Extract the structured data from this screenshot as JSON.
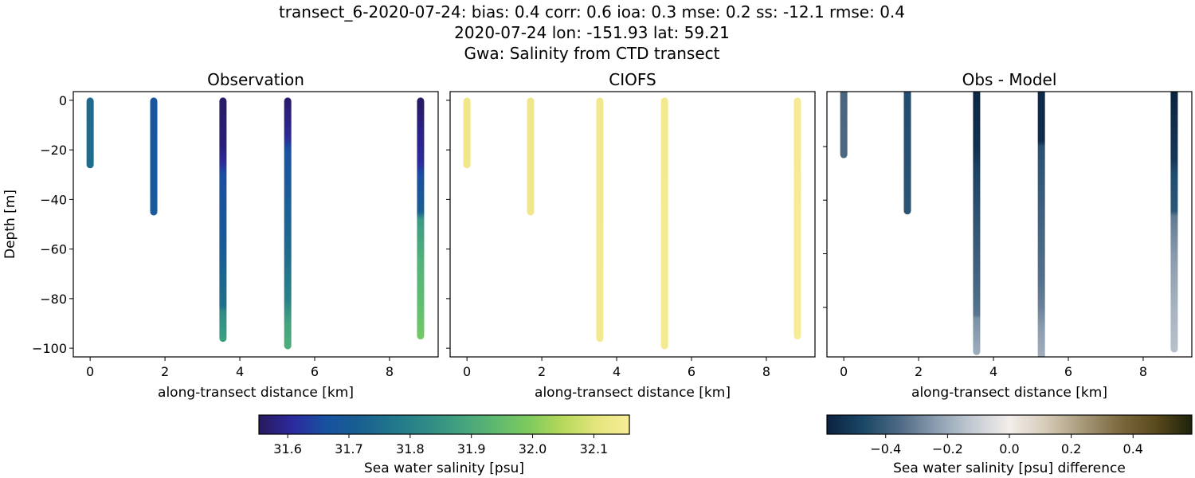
{
  "figure": {
    "title_lines": [
      "transect_6-2020-07-24: bias: 0.4  corr: 0.6  ioa: 0.3  mse: 0.2  ss: -12.1  rmse: 0.4",
      "2020-07-24 lon: -151.93 lat: 59.21",
      "Gwa: Salinity from CTD transect"
    ]
  },
  "chart_data": [
    {
      "type": "scatter",
      "title": "Observation",
      "xlabel": "along-transect distance [km]",
      "ylabel": "Depth [m]",
      "xlim": [
        -0.45,
        9.3
      ],
      "ylim": [
        -103.5,
        3.5
      ],
      "xticks": [
        0,
        2,
        4,
        6,
        8
      ],
      "yticks": [
        0,
        -20,
        -40,
        -60,
        -80,
        -100
      ],
      "ytick_labels": [
        "0",
        "−20",
        "−40",
        "−60",
        "−80",
        "−100"
      ],
      "colorbar": "salinity",
      "profiles": [
        {
          "x": 0.0,
          "depth_min": -26,
          "stops": [
            [
              0,
              "#1f6a8f"
            ],
            [
              -26,
              "#1f6d8d"
            ]
          ]
        },
        {
          "x": 1.7,
          "depth_min": -45,
          "stops": [
            [
              0,
              "#1856a0"
            ],
            [
              -45,
              "#185a9c"
            ]
          ]
        },
        {
          "x": 3.55,
          "depth_min": -96,
          "stops": [
            [
              0,
              "#281b66"
            ],
            [
              -18,
              "#2a1d78"
            ],
            [
              -25,
              "#2d2a98"
            ],
            [
              -30,
              "#1a4ea0"
            ],
            [
              -60,
              "#185c95"
            ],
            [
              -83,
              "#1f7088"
            ],
            [
              -85,
              "#2f8a86"
            ],
            [
              -96,
              "#3aa082"
            ]
          ]
        },
        {
          "x": 5.28,
          "depth_min": -99,
          "stops": [
            [
              0,
              "#2a1a6e"
            ],
            [
              -15,
              "#2c2a98"
            ],
            [
              -20,
              "#1a52a0"
            ],
            [
              -60,
              "#1d6a8e"
            ],
            [
              -80,
              "#2a8088"
            ],
            [
              -90,
              "#45a27e"
            ],
            [
              -99,
              "#4cad7a"
            ]
          ]
        },
        {
          "x": 8.83,
          "depth_min": -95,
          "stops": [
            [
              0,
              "#271a60"
            ],
            [
              -10,
              "#2a1f80"
            ],
            [
              -25,
              "#2c2a9c"
            ],
            [
              -30,
              "#1a4ea0"
            ],
            [
              -45,
              "#1b5f92"
            ],
            [
              -48,
              "#3a9a84"
            ],
            [
              -65,
              "#52b27a"
            ],
            [
              -85,
              "#62c06f"
            ],
            [
              -95,
              "#70c866"
            ]
          ]
        }
      ]
    },
    {
      "type": "scatter",
      "title": "CIOFS",
      "xlabel": "along-transect distance [km]",
      "ylabel": "",
      "xlim": [
        -0.45,
        9.3
      ],
      "ylim": [
        -103.5,
        3.5
      ],
      "xticks": [
        0,
        2,
        4,
        6,
        8
      ],
      "yticks": [
        0,
        -20,
        -40,
        -60,
        -80,
        -100
      ],
      "ytick_labels": [],
      "colorbar": "salinity",
      "profiles": [
        {
          "x": 0.0,
          "depth_min": -26,
          "stops": [
            [
              0,
              "#efe78a"
            ],
            [
              -26,
              "#efe78a"
            ]
          ]
        },
        {
          "x": 1.7,
          "depth_min": -45,
          "stops": [
            [
              0,
              "#f0e68c"
            ],
            [
              -45,
              "#f0e68c"
            ]
          ]
        },
        {
          "x": 3.55,
          "depth_min": -96,
          "stops": [
            [
              0,
              "#f2e88e"
            ],
            [
              -96,
              "#f3e98f"
            ]
          ]
        },
        {
          "x": 5.28,
          "depth_min": -99,
          "stops": [
            [
              0,
              "#f3e98f"
            ],
            [
              -99,
              "#f4ea92"
            ]
          ]
        },
        {
          "x": 8.83,
          "depth_min": -95,
          "stops": [
            [
              0,
              "#f5eb94"
            ],
            [
              -95,
              "#f6ec96"
            ]
          ]
        }
      ]
    },
    {
      "type": "scatter",
      "title": "Obs - Model",
      "xlabel": "along-transect distance [km]",
      "ylabel": "",
      "xlim": [
        -0.45,
        9.3
      ],
      "ylim": [
        -98.5,
        0.5
      ],
      "xticks": [
        0,
        2,
        4,
        6,
        8
      ],
      "yticks": [
        -20,
        -40,
        -60,
        -80
      ],
      "ytick_labels": [],
      "colorbar": "difference",
      "profiles": [
        {
          "x": 0.0,
          "depth_min": -23,
          "top_clipped": true,
          "stops": [
            [
              0,
              "#4a6580"
            ],
            [
              -23,
              "#4d6883"
            ]
          ]
        },
        {
          "x": 1.7,
          "depth_min": -44,
          "top_clipped": true,
          "stops": [
            [
              0,
              "#224b70"
            ],
            [
              -44,
              "#2b5474"
            ]
          ]
        },
        {
          "x": 3.55,
          "depth_min": -96.5,
          "top_clipped": true,
          "stops": [
            [
              0,
              "#0c2845"
            ],
            [
              -20,
              "#12304f"
            ],
            [
              -30,
              "#1f4565"
            ],
            [
              -75,
              "#4a6a86"
            ],
            [
              -83,
              "#5a768f"
            ],
            [
              -84,
              "#7a90a4"
            ],
            [
              -96.5,
              "#9aabbb"
            ]
          ]
        },
        {
          "x": 5.28,
          "depth_min": -100,
          "top_clipped": true,
          "stops": [
            [
              0,
              "#0e2a48"
            ],
            [
              -18,
              "#0f2c4a"
            ],
            [
              -20,
              "#2a5070"
            ],
            [
              -70,
              "#54708b"
            ],
            [
              -80,
              "#6a8299"
            ],
            [
              -88,
              "#8a9db0"
            ],
            [
              -100,
              "#a4b1be"
            ]
          ]
        },
        {
          "x": 8.83,
          "depth_min": -95.5,
          "top_clipped": true,
          "stops": [
            [
              0,
              "#0b2440"
            ],
            [
              -25,
              "#163858"
            ],
            [
              -30,
              "#1d4e70"
            ],
            [
              -44,
              "#2a5878"
            ],
            [
              -46,
              "#607a92"
            ],
            [
              -60,
              "#8699ad"
            ],
            [
              -80,
              "#a6b3c0"
            ],
            [
              -95.5,
              "#b6c0cb"
            ]
          ]
        }
      ]
    }
  ],
  "colorbars": {
    "salinity": {
      "label": "Sea water salinity [psu]",
      "vmin": 31.553,
      "vmax": 32.158,
      "ticks": [
        31.6,
        31.7,
        31.8,
        31.9,
        32.0,
        32.1
      ],
      "tick_labels": [
        "31.6",
        "31.7",
        "31.8",
        "31.9",
        "32.0",
        "32.1"
      ],
      "stops": [
        "#281a5e",
        "#2c2a9e",
        "#1752a0",
        "#195f90",
        "#21778b",
        "#308a86",
        "#43a27e",
        "#5eb870",
        "#7dca5e",
        "#b5d85a",
        "#e3e57c",
        "#f8ec98"
      ]
    },
    "difference": {
      "label": "Sea water salinity [psu] difference",
      "vmin": -0.59,
      "vmax": 0.59,
      "ticks": [
        -0.4,
        -0.2,
        0.0,
        0.2,
        0.4
      ],
      "tick_labels": [
        "−0.4",
        "−0.2",
        "0.0",
        "0.2",
        "0.4"
      ],
      "stops": [
        "#0b2240",
        "#1a4766",
        "#4e6a84",
        "#8c9eb0",
        "#c4cbd3",
        "#f2eeea",
        "#d6cbb8",
        "#a8997a",
        "#7c6a40",
        "#5a4a1c",
        "#1e220c"
      ]
    }
  }
}
